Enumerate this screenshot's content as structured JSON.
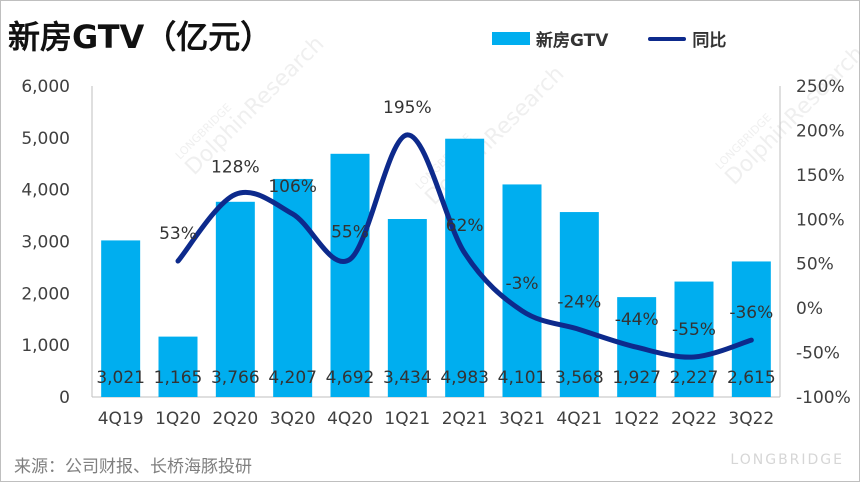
{
  "title": "新房GTV（亿元）",
  "legend": {
    "bar_label": "新房GTV",
    "line_label": "同比"
  },
  "source": "来源：公司财报、长桥海豚投研",
  "watermark": [
    "LONGBRIDGE",
    "DolphinResearch"
  ],
  "brand": "LONGBRIDGE",
  "colors": {
    "bar": "#00aeef",
    "line": "#0d2a8c",
    "text": "#404040"
  },
  "chart_data": {
    "type": "bar",
    "categories": [
      "4Q19",
      "1Q20",
      "2Q20",
      "3Q20",
      "4Q20",
      "1Q21",
      "2Q21",
      "3Q21",
      "4Q21",
      "1Q22",
      "2Q22",
      "3Q22"
    ],
    "series": [
      {
        "name": "新房GTV",
        "type": "bar",
        "axis": "left",
        "values": [
          3021,
          1165,
          3766,
          4207,
          4692,
          3434,
          4983,
          4101,
          3568,
          1927,
          2227,
          2615
        ],
        "labels": [
          "3,021",
          "1,165",
          "3,766",
          "4,207",
          "4,692",
          "3,434",
          "4,983",
          "4,101",
          "3,568",
          "1,927",
          "2,227",
          "2,615"
        ]
      },
      {
        "name": "同比",
        "type": "line",
        "axis": "right",
        "values": [
          null,
          53,
          128,
          106,
          55,
          195,
          62,
          -3,
          -24,
          -44,
          -55,
          -36
        ],
        "labels": [
          "",
          "53%",
          "128%",
          "106%",
          "55%",
          "195%",
          "62%",
          "-3%",
          "-24%",
          "-44%",
          "-55%",
          "-36%"
        ]
      }
    ],
    "y_left": {
      "range": [
        0,
        6000
      ],
      "ticks": [
        "0",
        "1,000",
        "2,000",
        "3,000",
        "4,000",
        "5,000",
        "6,000"
      ]
    },
    "y_right": {
      "range": [
        -100,
        250
      ],
      "ticks": [
        "-100%",
        "-50%",
        "0%",
        "50%",
        "100%",
        "150%",
        "200%",
        "250%"
      ]
    },
    "grid": false,
    "legend_position": "top-right"
  }
}
